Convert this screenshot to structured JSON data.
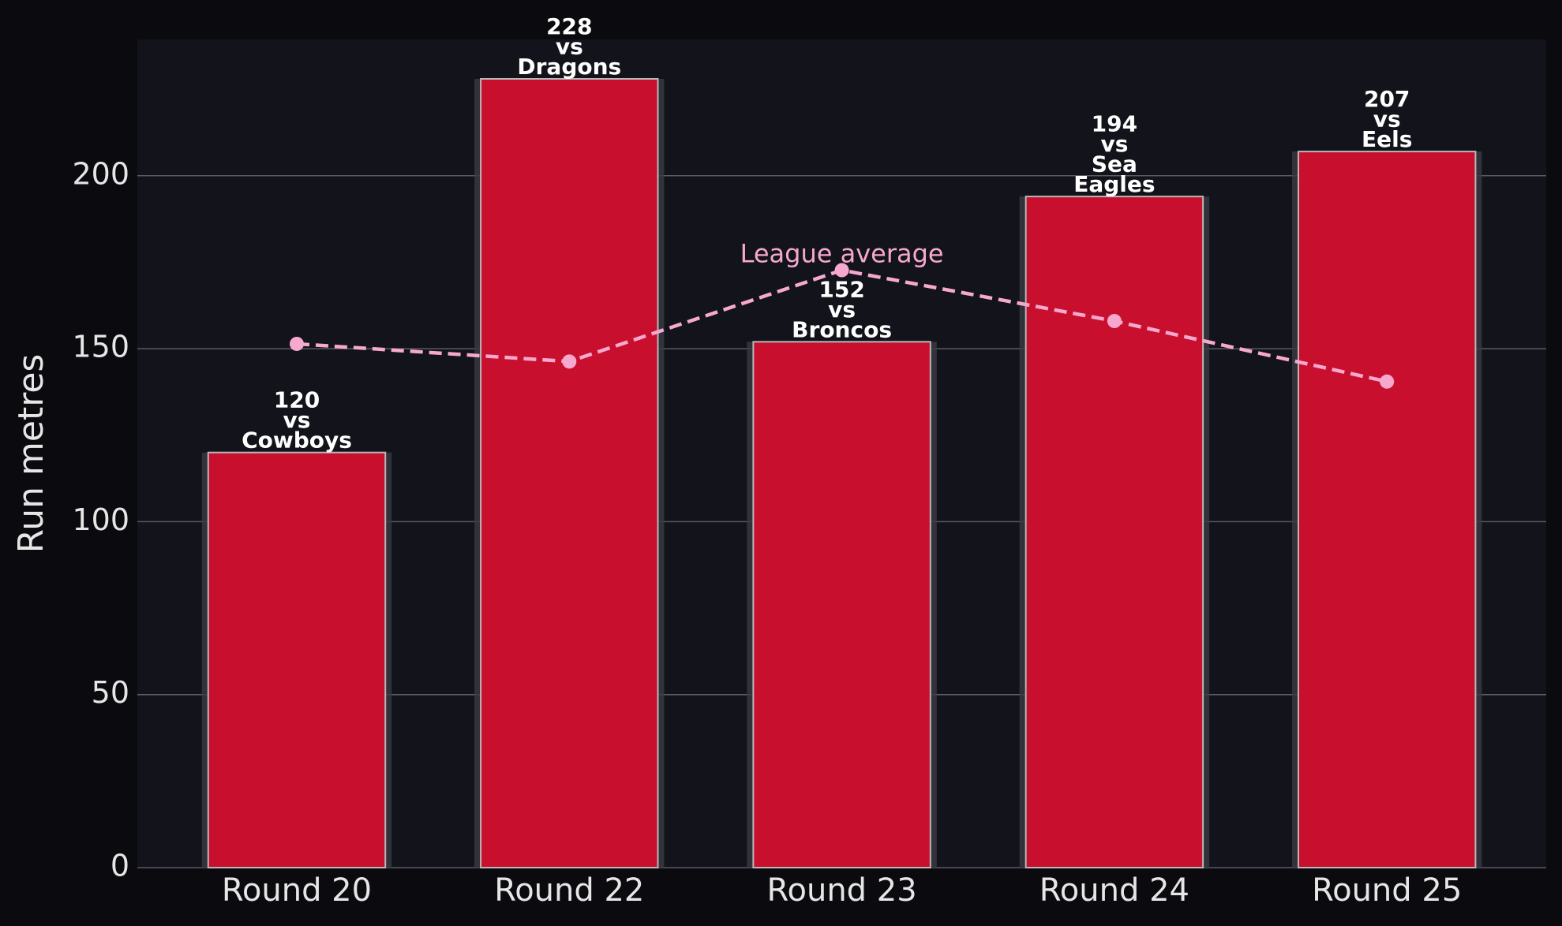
{
  "chart_data": {
    "type": "bar",
    "y_label": "Run metres",
    "categories": [
      "Round 20",
      "Round 22",
      "Round 23",
      "Round 24",
      "Round 25"
    ],
    "values": [
      120,
      228,
      152,
      194,
      207
    ],
    "connector": "vs",
    "opponents": [
      "Cowboys",
      "Dragons",
      "Broncos",
      "Sea Eagles",
      "Eels"
    ],
    "color": "#c8102e",
    "line": {
      "name": "League average",
      "color": "#f7a8cf",
      "values": [
        151.4,
        146.3,
        172.7,
        158,
        140.5
      ]
    },
    "ylim": [
      0,
      239.4
    ],
    "yticks": [
      0,
      50,
      100,
      150,
      200
    ],
    "grid": true
  }
}
